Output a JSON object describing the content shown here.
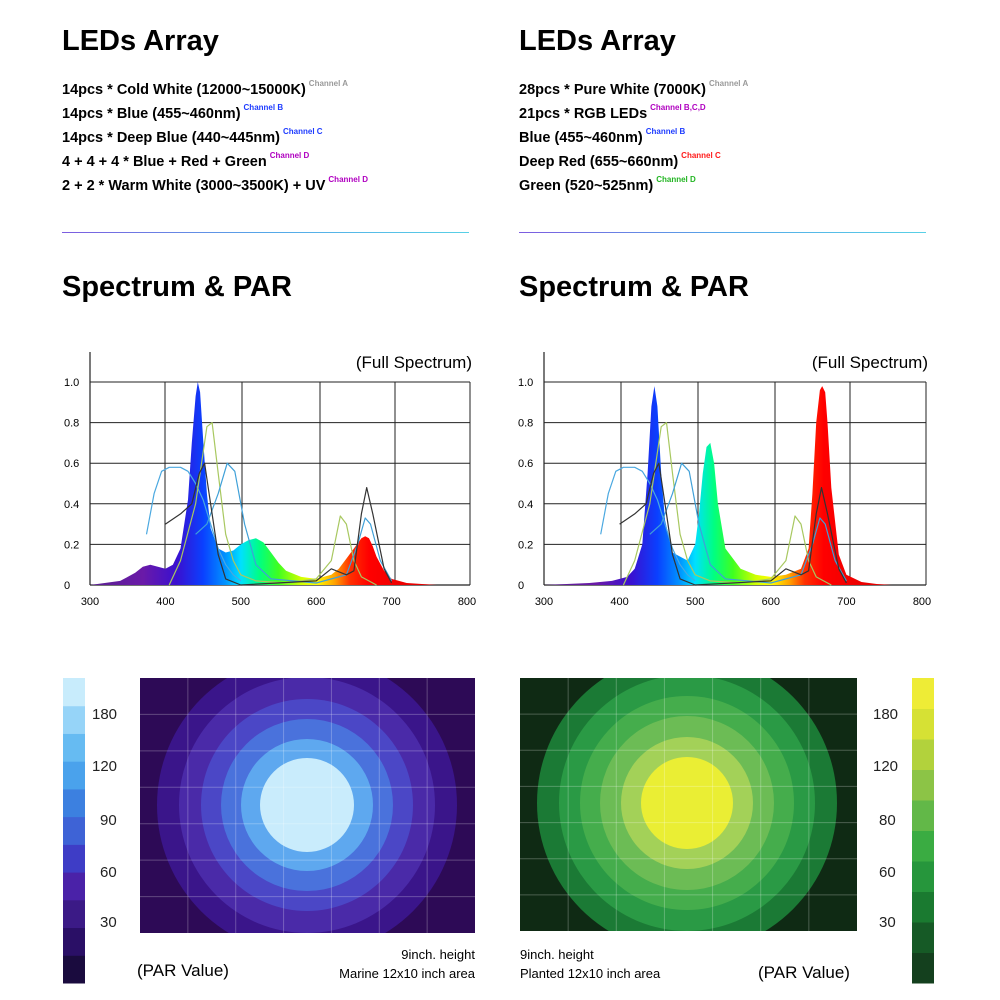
{
  "panels": [
    {
      "leds_title": "LEDs Array",
      "leds": [
        {
          "text": "14pcs * Cold White (12000~15000K)",
          "channel": "Channel A",
          "color": "#9a9a9a"
        },
        {
          "text": "14pcs * Blue (455~460nm)",
          "channel": "Channel B",
          "color": "#1e3cff"
        },
        {
          "text": "14pcs * Deep Blue (440~445nm)",
          "channel": "Channel C",
          "color": "#1e3cff"
        },
        {
          "text": "4 + 4 + 4 * Blue + Red + Green",
          "channel": "Channel D",
          "color": "#b000c0"
        },
        {
          "text": "2 + 2 * Warm White (3000~3500K) + UV",
          "channel": "Channel D",
          "color": "#b000c0"
        }
      ],
      "spectrum_title": "Spectrum & PAR",
      "spectrum_label": "(Full Spectrum)",
      "par_scale": [
        "180",
        "120",
        "90",
        "60",
        "30"
      ],
      "par_label": "(PAR Value)",
      "note_line1": "9inch. height",
      "note_line2": "Marine 12x10 inch area"
    },
    {
      "leds_title": "LEDs Array",
      "leds": [
        {
          "text": "28pcs * Pure White (7000K)",
          "channel": "Channel A",
          "color": "#9a9a9a"
        },
        {
          "text": "21pcs * RGB LEDs",
          "channel": "Channel B,C,D",
          "color": "#b000c0"
        },
        {
          "text": "Blue (455~460nm)",
          "channel": "Channel B",
          "color": "#1e3cff"
        },
        {
          "text": "Deep Red (655~660nm)",
          "channel": "Channel C",
          "color": "#ff1a1a"
        },
        {
          "text": "Green (520~525nm)",
          "channel": "Channel D",
          "color": "#22b522"
        }
      ],
      "spectrum_title": "Spectrum & PAR",
      "spectrum_label": "(Full Spectrum)",
      "par_scale": [
        "180",
        "120",
        "80",
        "60",
        "30"
      ],
      "par_label": "(PAR Value)",
      "note_line1": "9inch. height",
      "note_line2": "Planted 12x10 inch area"
    }
  ],
  "chart_data": [
    {
      "type": "area",
      "x_ticks": [
        300,
        400,
        500,
        600,
        700,
        800
      ],
      "y_ticks": [
        "0",
        "0.2",
        "0.4",
        "0.6",
        "0.8",
        "1.0"
      ],
      "xlim": [
        300,
        800
      ],
      "ylim": [
        0,
        1.0
      ],
      "grid": true,
      "series": [
        {
          "type": "area",
          "x": [
            300,
            340,
            360,
            370,
            380,
            390,
            400,
            410,
            420,
            430,
            435,
            440,
            443,
            446,
            450,
            455,
            460,
            470,
            480,
            490,
            500,
            510,
            520,
            530,
            540,
            550,
            560,
            580,
            600,
            620,
            630,
            640,
            650,
            660,
            665,
            670,
            675,
            680,
            690,
            700,
            720,
            740,
            760
          ],
          "y": [
            0.0,
            0.02,
            0.06,
            0.09,
            0.1,
            0.09,
            0.08,
            0.1,
            0.18,
            0.42,
            0.7,
            0.93,
            1.0,
            0.95,
            0.72,
            0.45,
            0.28,
            0.18,
            0.16,
            0.17,
            0.2,
            0.22,
            0.23,
            0.21,
            0.16,
            0.11,
            0.07,
            0.04,
            0.03,
            0.05,
            0.08,
            0.13,
            0.18,
            0.23,
            0.24,
            0.23,
            0.19,
            0.14,
            0.07,
            0.03,
            0.01,
            0.005,
            0.0
          ]
        }
      ]
    },
    {
      "type": "area",
      "x_ticks": [
        300,
        400,
        500,
        600,
        700,
        800
      ],
      "y_ticks": [
        "0",
        "0.2",
        "0.4",
        "0.6",
        "0.8",
        "1.0"
      ],
      "xlim": [
        300,
        800
      ],
      "ylim": [
        0,
        1.0
      ],
      "grid": true,
      "series": [
        {
          "type": "area",
          "x": [
            300,
            360,
            390,
            410,
            420,
            430,
            437,
            442,
            446,
            450,
            455,
            460,
            470,
            480,
            490,
            500,
            505,
            510,
            515,
            520,
            525,
            530,
            540,
            560,
            580,
            600,
            620,
            640,
            650,
            655,
            660,
            665,
            668,
            672,
            675,
            680,
            690,
            700,
            720,
            740,
            760
          ],
          "y": [
            0.0,
            0.01,
            0.02,
            0.04,
            0.08,
            0.2,
            0.55,
            0.88,
            0.98,
            0.88,
            0.55,
            0.32,
            0.16,
            0.14,
            0.12,
            0.2,
            0.35,
            0.55,
            0.68,
            0.7,
            0.6,
            0.4,
            0.18,
            0.08,
            0.05,
            0.04,
            0.05,
            0.08,
            0.18,
            0.45,
            0.8,
            0.96,
            0.98,
            0.95,
            0.8,
            0.48,
            0.15,
            0.05,
            0.015,
            0.005,
            0.0
          ]
        }
      ]
    }
  ],
  "colors": {
    "marine_ramp": [
      "#1a0b3e",
      "#2a0f66",
      "#3b1a86",
      "#4a22a8",
      "#3e3dc6",
      "#3e63d6",
      "#3c80e0",
      "#4aa2ec",
      "#66bbf2",
      "#96d4f8",
      "#c8ecfc"
    ],
    "planted_ramp": [
      "#14401e",
      "#165a26",
      "#1a7a30",
      "#26963c",
      "#3aac42",
      "#62b848",
      "#8cc446",
      "#b2d23c",
      "#d6e134",
      "#eeec36"
    ],
    "marine_bg": "#2d0a56",
    "planted_bg": "#0f2a14"
  }
}
